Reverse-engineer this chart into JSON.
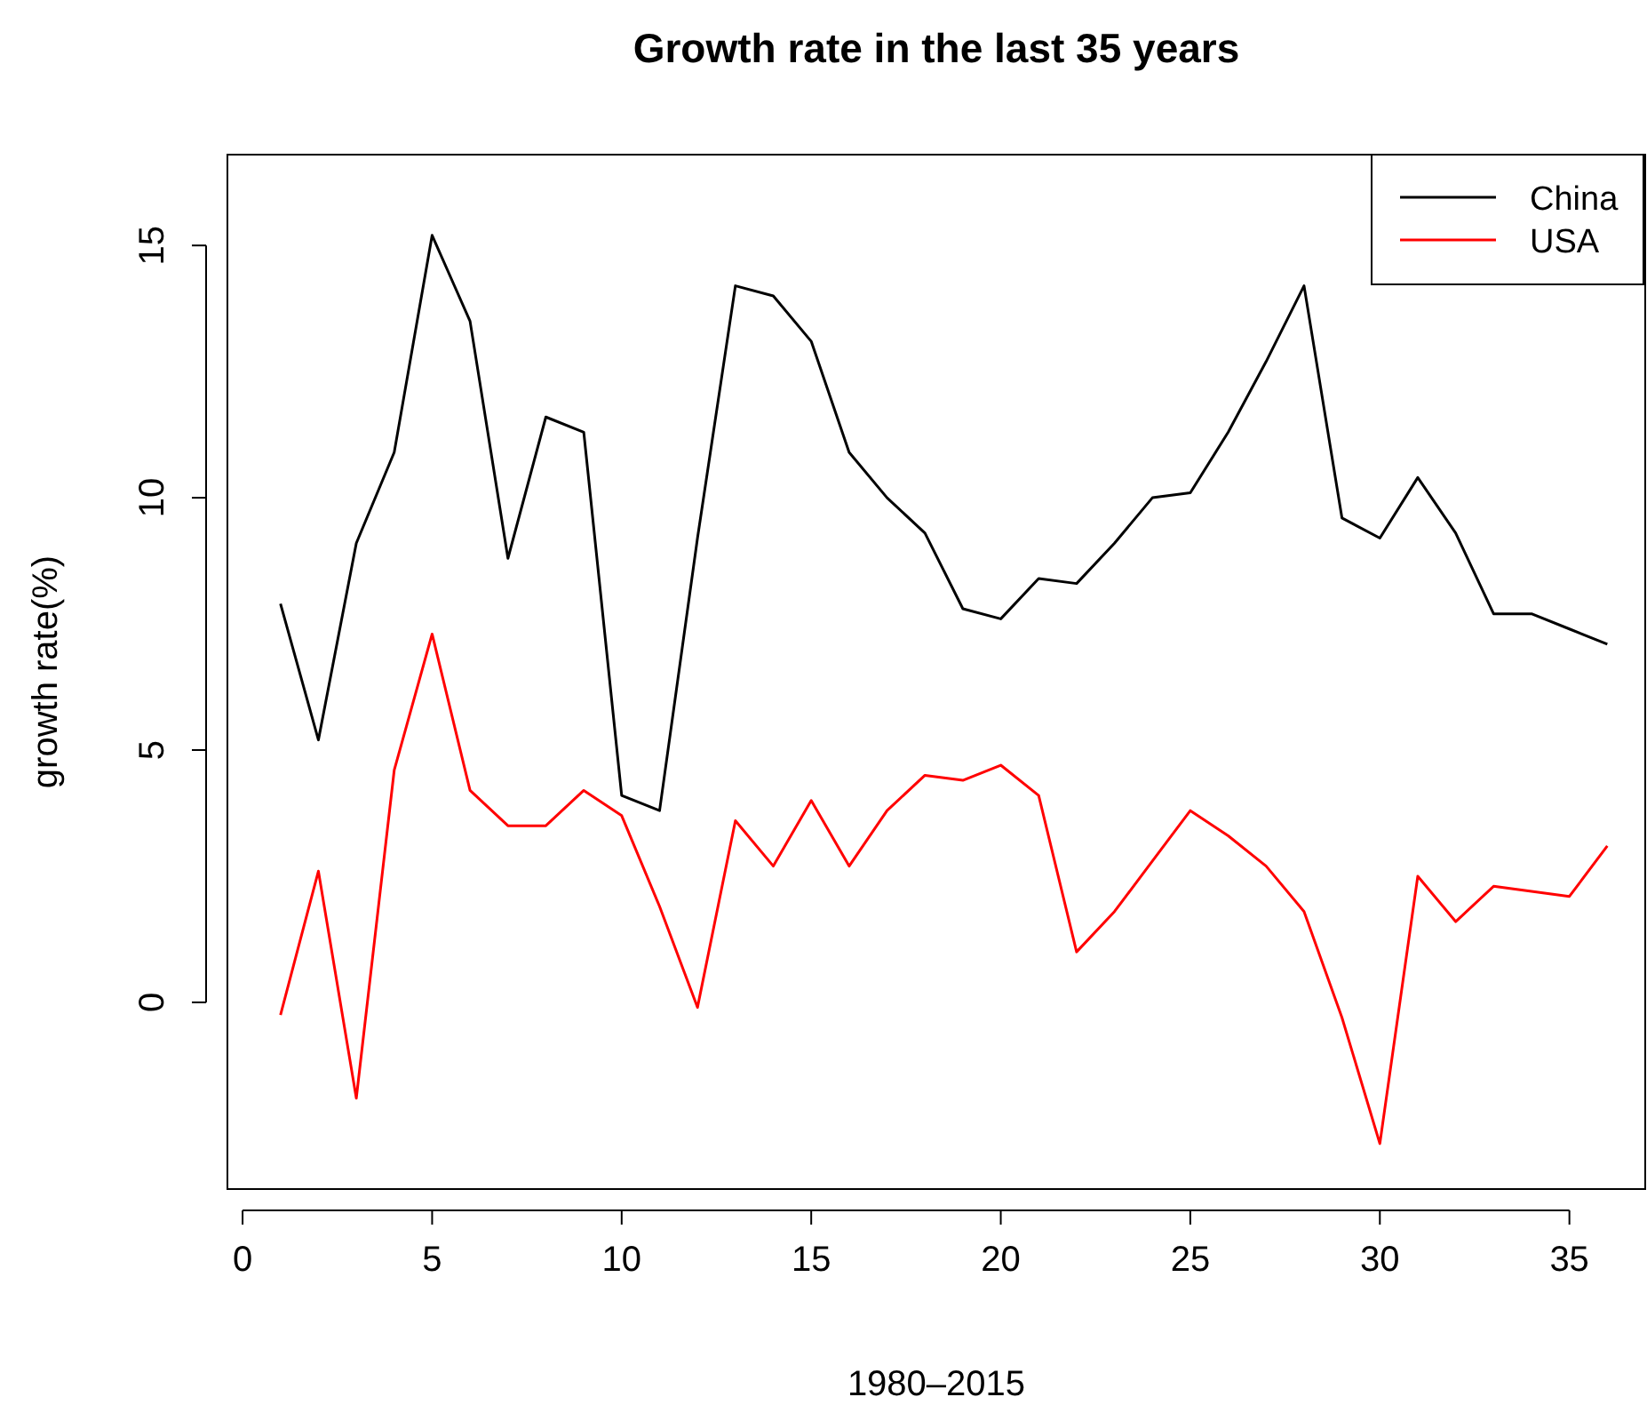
{
  "chart_data": {
    "type": "line",
    "title": "Growth rate in the last 35 years",
    "xlabel": "1980–2015",
    "ylabel": "growth rate(%)",
    "x": [
      1,
      2,
      3,
      4,
      5,
      6,
      7,
      8,
      9,
      10,
      11,
      12,
      13,
      14,
      15,
      16,
      17,
      18,
      19,
      20,
      21,
      22,
      23,
      24,
      25,
      26,
      27,
      28,
      29,
      30,
      31,
      32,
      33,
      34,
      35,
      36
    ],
    "series": [
      {
        "name": "China",
        "color": "#000000",
        "values": [
          7.9,
          5.2,
          9.1,
          10.9,
          15.2,
          13.5,
          8.8,
          11.6,
          11.3,
          4.1,
          3.8,
          9.2,
          14.2,
          14.0,
          13.1,
          10.9,
          10.0,
          9.3,
          7.8,
          7.6,
          8.4,
          8.3,
          9.1,
          10.0,
          10.1,
          11.3,
          12.7,
          14.2,
          9.6,
          9.2,
          10.4,
          9.3,
          7.7,
          7.7,
          7.4,
          7.1
        ]
      },
      {
        "name": "USA",
        "color": "#ff0000",
        "values": [
          -0.25,
          2.6,
          -1.9,
          4.6,
          7.3,
          4.2,
          3.5,
          3.5,
          4.2,
          3.7,
          1.9,
          -0.1,
          3.6,
          2.7,
          4.0,
          2.7,
          3.8,
          4.5,
          4.4,
          4.7,
          4.1,
          1.0,
          1.8,
          2.8,
          3.8,
          3.3,
          2.7,
          1.8,
          -0.3,
          -2.8,
          2.5,
          1.6,
          2.3,
          2.2,
          2.1,
          3.1
        ]
      }
    ],
    "xlim": [
      -0.4,
      37.0
    ],
    "ylim": [
      -3.7,
      16.8
    ],
    "xticks": [
      0,
      5,
      10,
      15,
      20,
      25,
      30,
      35
    ],
    "yticks": [
      0,
      5,
      10,
      15
    ],
    "grid": false,
    "legend": "top right",
    "line_style": "solid",
    "marker": "none"
  }
}
